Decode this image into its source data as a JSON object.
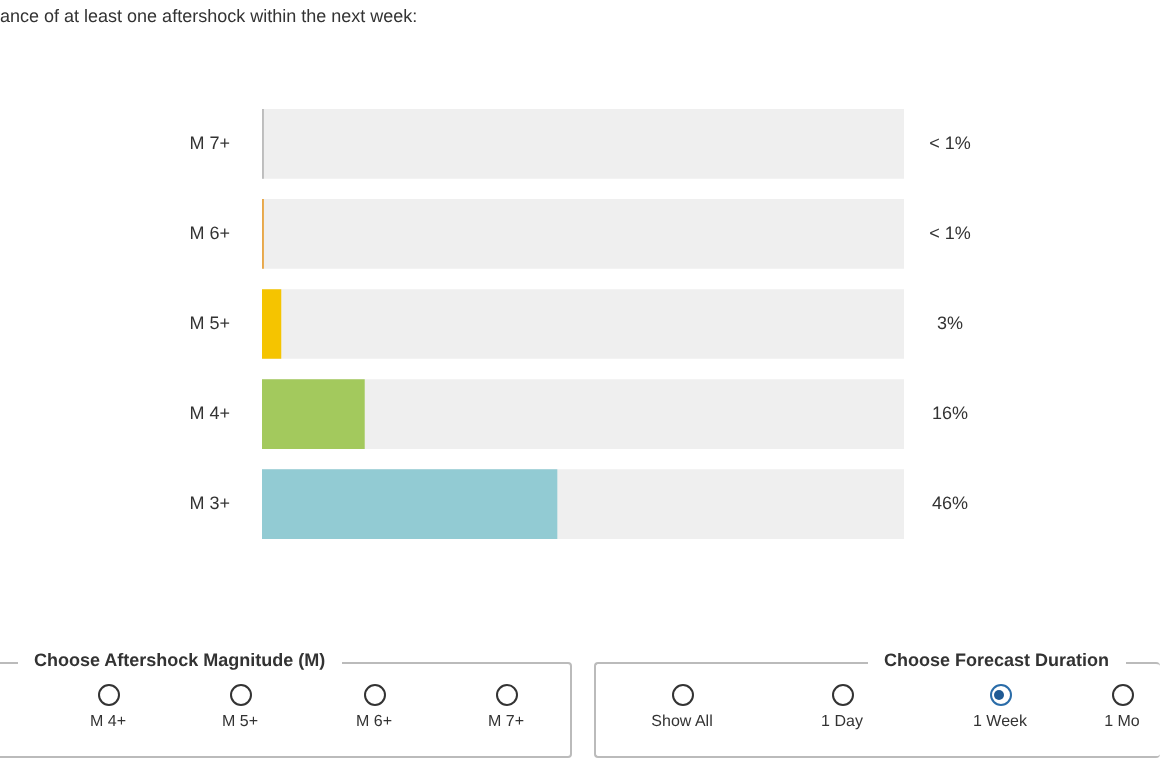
{
  "chart_data": {
    "type": "bar",
    "orientation": "horizontal",
    "title": "ance of at least one aftershock within the next week:",
    "categories": [
      "M 7+",
      "M 6+",
      "M 5+",
      "M 4+",
      "M 3+"
    ],
    "values": [
      0.3,
      0.3,
      3,
      16,
      46
    ],
    "colors": [
      "#bdbdbd",
      "#e8a84a",
      "#f5c400",
      "#a3c95d",
      "#92cbd3"
    ],
    "value_labels": [
      "< 1%",
      "< 1%",
      "3%",
      "16%",
      "46%"
    ],
    "xlim": [
      0,
      100
    ],
    "tick_labels": "y",
    "legend": false,
    "annotations": [
      "Choose Aftershock Magnitude (M)",
      "M 4+",
      "M 5+",
      "M 6+",
      "M 7+",
      "Choose Forecast Duration",
      "Show All",
      "1 Day",
      "1 Week",
      "1 Mo"
    ]
  }
}
